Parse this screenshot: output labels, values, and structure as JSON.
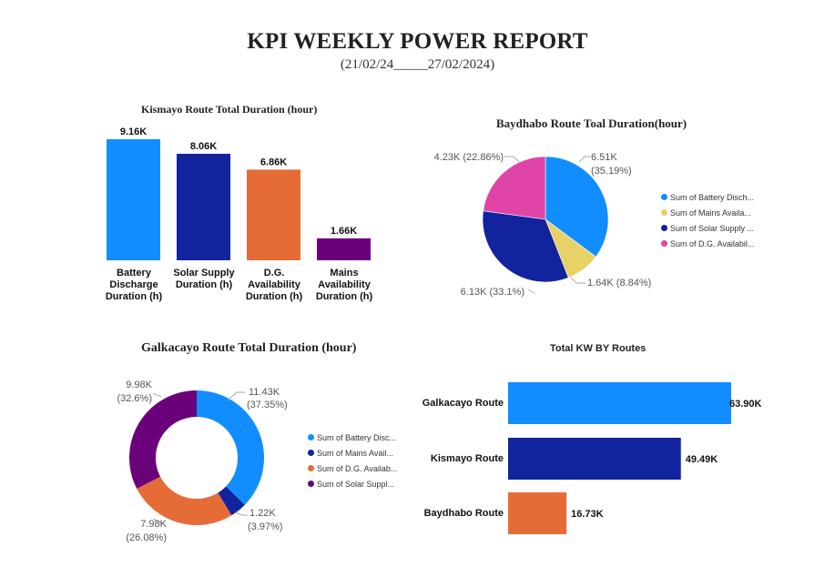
{
  "report": {
    "title": "KPI WEEKLY POWER REPORT",
    "dates": "(21/02/24_____27/02/2024)"
  },
  "colors": {
    "light_blue": "#118DFF",
    "dark_blue": "#12239E",
    "orange": "#E66C37",
    "purple": "#6B007B",
    "yellow": "#E8D166",
    "pink": "#E044A7"
  },
  "chart_data": [
    {
      "id": "kismayo",
      "type": "bar",
      "title": "Kismayo Route Total Duration (hour)",
      "categories": [
        "Battery Discharge Duration (h)",
        "Solar Supply Duration (h)",
        "D.G. Availability Duration (h)",
        "Mains Availability Duration (h)"
      ],
      "values": [
        9160,
        8060,
        6860,
        1660
      ],
      "data_labels": [
        "9.16K",
        "8.06K",
        "6.86K",
        "1.66K"
      ],
      "colors": [
        "#118DFF",
        "#12239E",
        "#E66C37",
        "#6B007B"
      ],
      "ylim": [
        0,
        9160
      ]
    },
    {
      "id": "baydhabo",
      "type": "pie",
      "title": "Baydhabo Route Toal Duration(hour)",
      "slices": [
        {
          "legend": "Sum of Battery Disch...",
          "value": 6510,
          "label": "6.51K",
          "percent_label": "(35.19%)",
          "percent": 35.19,
          "color": "#118DFF"
        },
        {
          "legend": "Sum of Mains Availa...",
          "value": 1640,
          "label": "1.64K (8.84%)",
          "percent_label": "",
          "percent": 8.84,
          "color": "#E8D166"
        },
        {
          "legend": "Sum of Solar Supply ...",
          "value": 6130,
          "label": "6.13K (33.1%)",
          "percent_label": "",
          "percent": 33.1,
          "color": "#12239E"
        },
        {
          "legend": "Sum of D.G. Availabil...",
          "value": 4230,
          "label": "4.23K (22.86%)",
          "percent_label": "",
          "percent": 22.86,
          "color": "#E044A7"
        }
      ],
      "legend_position": "right"
    },
    {
      "id": "galkacayo",
      "type": "pie",
      "title": "Galkacayo Route Total Duration (hour)",
      "donut": true,
      "slices": [
        {
          "legend": "Sum of Battery Disc...",
          "value": 11430,
          "label": "11.43K",
          "percent_label": "(37.35%)",
          "percent": 37.35,
          "color": "#118DFF"
        },
        {
          "legend": "Sum of Mains Avail...",
          "value": 1220,
          "label": "1.22K",
          "percent_label": "(3.97%)",
          "percent": 3.97,
          "color": "#12239E"
        },
        {
          "legend": "Sum of D.G. Availab...",
          "value": 7980,
          "label": "7.98K",
          "percent_label": "(26.08%)",
          "percent": 26.08,
          "color": "#E66C37"
        },
        {
          "legend": "Sum of Solar Suppl...",
          "value": 9980,
          "label": "9.98K",
          "percent_label": "(32.6%)",
          "percent": 32.6,
          "color": "#6B007B"
        }
      ],
      "legend_position": "right"
    },
    {
      "id": "total_kw",
      "type": "bar",
      "orientation": "horizontal",
      "title": "Total KW BY Routes",
      "categories": [
        "Galkacayo Route",
        "Kismayo Route",
        "Baydhabo Route"
      ],
      "values": [
        63900,
        49490,
        16730
      ],
      "data_labels": [
        "63.90K",
        "49.49K",
        "16.73K"
      ],
      "colors": [
        "#118DFF",
        "#12239E",
        "#E66C37"
      ],
      "xlim": [
        0,
        63900
      ]
    }
  ]
}
